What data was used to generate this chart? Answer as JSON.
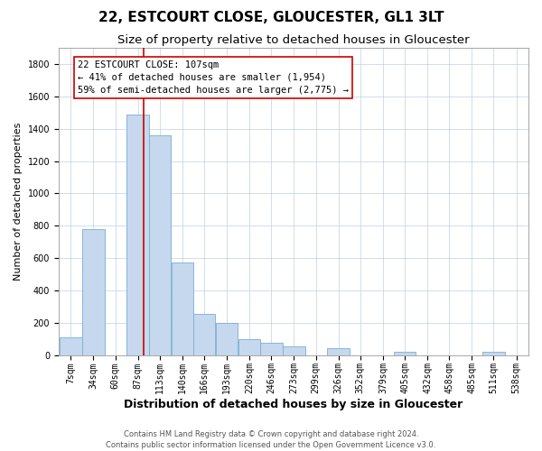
{
  "title": "22, ESTCOURT CLOSE, GLOUCESTER, GL1 3LT",
  "subtitle": "Size of property relative to detached houses in Gloucester",
  "xlabel": "Distribution of detached houses by size in Gloucester",
  "ylabel": "Number of detached properties",
  "bar_color": "#c5d8ee",
  "bar_edge_color": "#7aadd4",
  "vline_x": 107,
  "vline_color": "#cc0000",
  "annotation_line1": "22 ESTCOURT CLOSE: 107sqm",
  "annotation_line2": "← 41% of detached houses are smaller (1,954)",
  "annotation_line3": "59% of semi-detached houses are larger (2,775) →",
  "annotation_box_facecolor": "#ffffff",
  "annotation_box_edgecolor": "#cc0000",
  "footer_line1": "Contains HM Land Registry data © Crown copyright and database right 2024.",
  "footer_line2": "Contains public sector information licensed under the Open Government Licence v3.0.",
  "bin_lefts": [
    7,
    34,
    60,
    87,
    113,
    140,
    166,
    193,
    220,
    246,
    273,
    299,
    326,
    352,
    379,
    405,
    432,
    458,
    485,
    511,
    538
  ],
  "bin_width": 27,
  "counts": [
    110,
    780,
    0,
    1490,
    1360,
    570,
    255,
    200,
    100,
    75,
    55,
    0,
    40,
    0,
    0,
    20,
    0,
    0,
    0,
    20,
    0
  ],
  "ylim": [
    0,
    1900
  ],
  "yticks": [
    0,
    200,
    400,
    600,
    800,
    1000,
    1200,
    1400,
    1600,
    1800
  ],
  "bg_color": "#ffffff",
  "title_fontsize": 11,
  "subtitle_fontsize": 9.5,
  "ylabel_fontsize": 8,
  "xlabel_fontsize": 9,
  "tick_fontsize": 7,
  "footer_fontsize": 6,
  "annot_fontsize": 7.5
}
